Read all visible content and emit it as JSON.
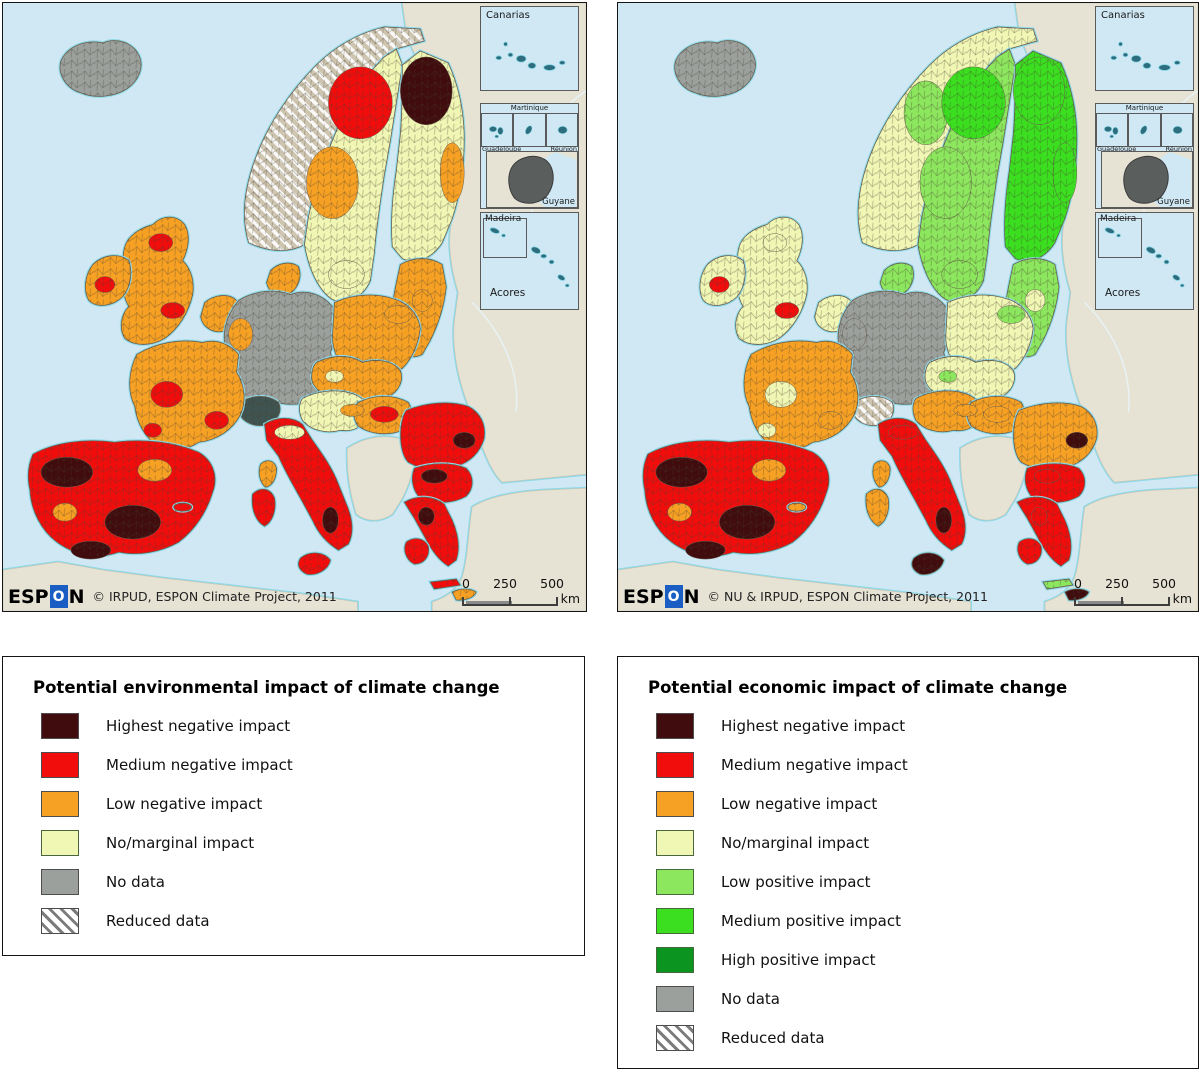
{
  "colors": {
    "sea": "#cfe8f4",
    "coast": "#8fd9e8",
    "land": "#e6e3d5",
    "land_border": "#c9c4b0",
    "region_border": "#6a6050",
    "hatch_base": "#cdc5b0",
    "highest_negative": "#400c0d",
    "medium_negative": "#f20d0d",
    "low_negative": "#f7a124",
    "no_marginal": "#f0f6b4",
    "low_positive": "#8ce65e",
    "medium_positive": "#3bdf20",
    "high_positive": "#0c9421",
    "no_data": "#9ba09d",
    "alpine_dark": "#3f5450"
  },
  "maps": [
    {
      "id": "environmental",
      "logo": {
        "prefix": "ESP",
        "o": "O",
        "suffix": "N"
      },
      "attribution": "© IRPUD, ESPON Climate Project, 2011",
      "scalebar": {
        "t0": "0",
        "t1": "250",
        "t2": "500",
        "unit": "km"
      },
      "insets": {
        "canarias": "Canarias",
        "martinique": "Martinique",
        "guadeloupe": "Guadeloupe",
        "reunion": "Réunion",
        "guyane": "Guyane",
        "madeira": "Madeira",
        "acores": "Acores"
      },
      "region_fills": {
        "iceland": "no_data",
        "norway": "reduced",
        "sweden": "no_marginal",
        "finland": "no_marginal",
        "denmark": "low_negative",
        "baltics": "low_negative",
        "uk": "low_negative",
        "ireland": "low_negative",
        "benelux": "low_negative",
        "germany": "no_data",
        "poland": "low_negative",
        "czech_slovakia": "low_negative",
        "austria": "no_marginal",
        "hungary": "low_negative",
        "switzerland": "alpine_dark",
        "france": "low_negative",
        "iberia": "medium_negative",
        "italy": "medium_negative",
        "sicily": "medium_negative",
        "sardinia": "medium_negative",
        "corsica": "low_negative",
        "romania": "medium_negative",
        "bulgaria": "medium_negative",
        "greece": "medium_negative",
        "peloponnese": "medium_negative",
        "crete": "medium_negative",
        "cyprus": "low_negative",
        "balearics": "medium_negative",
        "p_norway_n": "none",
        "p_sweden_north": "medium_negative",
        "p_finland_north": "highest_negative",
        "p_finland_east": "low_negative",
        "p_sweden_mid": "low_negative",
        "p_sweden_south": "no_marginal",
        "p_uk_scotland": "medium_negative",
        "p_uk_london": "medium_negative",
        "p_ireland": "medium_negative",
        "p_germany_west": "low_negative",
        "p_poland_ne": "low_negative",
        "p_czech": "no_marginal",
        "p_france1": "medium_negative",
        "p_france2": "medium_negative",
        "p_france3": "medium_negative",
        "p_iberia_d1": "highest_negative",
        "p_iberia_d2": "highest_negative",
        "p_iberia_d3": "highest_negative",
        "p_iberia_o1": "low_negative",
        "p_iberia_o2": "low_negative",
        "p_italy_north": "no_marginal",
        "p_italy_dark": "highest_negative",
        "p_hungary": "medium_negative",
        "p_romania_dark": "highest_negative",
        "p_balkan_dark": "highest_negative",
        "p_greece_dark": "highest_negative",
        "p_austria_o": "low_negative",
        "p_baltics_pale": "low_negative"
      }
    },
    {
      "id": "economic",
      "logo": {
        "prefix": "ESP",
        "o": "O",
        "suffix": "N"
      },
      "attribution": "© NU & IRPUD, ESPON Climate Project, 2011",
      "scalebar": {
        "t0": "0",
        "t1": "250",
        "t2": "500",
        "unit": "km"
      },
      "insets": {
        "canarias": "Canarias",
        "martinique": "Martinique",
        "guadeloupe": "Guadeloupe",
        "reunion": "Réunion",
        "guyane": "Guyane",
        "madeira": "Madeira",
        "acores": "Acores"
      },
      "region_fills": {
        "iceland": "no_data",
        "norway": "no_marginal",
        "sweden": "low_positive",
        "finland": "medium_positive",
        "denmark": "low_positive",
        "baltics": "low_positive",
        "uk": "no_marginal",
        "ireland": "no_marginal",
        "benelux": "no_marginal",
        "germany": "no_data",
        "poland": "no_marginal",
        "czech_slovakia": "no_marginal",
        "austria": "low_negative",
        "hungary": "low_negative",
        "switzerland": "reduced",
        "france": "low_negative",
        "iberia": "medium_negative",
        "italy": "medium_negative",
        "sicily": "highest_negative",
        "sardinia": "low_negative",
        "corsica": "low_negative",
        "romania": "low_negative",
        "bulgaria": "medium_negative",
        "greece": "medium_negative",
        "peloponnese": "medium_negative",
        "crete": "low_positive",
        "cyprus": "highest_negative",
        "balearics": "low_negative",
        "p_norway_n": "low_positive",
        "p_sweden_north": "medium_positive",
        "p_finland_north": "medium_positive",
        "p_finland_east": "medium_positive",
        "p_sweden_mid": "low_positive",
        "p_sweden_south": "low_positive",
        "p_uk_scotland": "no_marginal",
        "p_uk_london": "medium_negative",
        "p_ireland": "medium_negative",
        "p_germany_west": "no_data",
        "p_poland_ne": "low_positive",
        "p_czech": "low_positive",
        "p_france1": "no_marginal",
        "p_france2": "low_negative",
        "p_france3": "no_marginal",
        "p_iberia_d1": "highest_negative",
        "p_iberia_d2": "highest_negative",
        "p_iberia_d3": "highest_negative",
        "p_iberia_o1": "low_negative",
        "p_iberia_o2": "low_negative",
        "p_italy_north": "medium_negative",
        "p_italy_dark": "highest_negative",
        "p_hungary": "low_negative",
        "p_romania_dark": "highest_negative",
        "p_balkan_dark": "medium_negative",
        "p_greece_dark": "medium_negative",
        "p_austria_o": "low_negative",
        "p_baltics_pale": "no_marginal"
      }
    }
  ],
  "legends": [
    {
      "title": "Potential environmental impact of climate change",
      "items": [
        {
          "label": "Highest negative impact",
          "color": "#400c0d",
          "border": "#4d4d4d"
        },
        {
          "label": "Medium negative impact",
          "color": "#f20d0d",
          "border": "#4d4d4d"
        },
        {
          "label": "Low negative impact",
          "color": "#f7a124",
          "border": "#4d4d4d"
        },
        {
          "label": "No/marginal impact",
          "color": "#f0f6b4",
          "border": "#49663c"
        },
        {
          "label": "No data",
          "color": "#9ba09d",
          "border": "#4d4d4d"
        },
        {
          "label": "Reduced data",
          "hatched": true,
          "border": "#4d4d4d"
        }
      ]
    },
    {
      "title": "Potential economic impact of climate change",
      "items": [
        {
          "label": "Highest negative impact",
          "color": "#400c0d",
          "border": "#4d4d4d"
        },
        {
          "label": "Medium negative impact",
          "color": "#f20d0d",
          "border": "#4d4d4d"
        },
        {
          "label": "Low negative impact",
          "color": "#f7a124",
          "border": "#4d4d4d"
        },
        {
          "label": "No/marginal impact",
          "color": "#f0f6b4",
          "border": "#49663c"
        },
        {
          "label": "Low positive impact",
          "color": "#8ce65e",
          "border": "#456b3a"
        },
        {
          "label": "Medium positive impact",
          "color": "#3bdf20",
          "border": "#456b3a"
        },
        {
          "label": "High positive impact",
          "color": "#0c9421",
          "border": "#456b3a"
        },
        {
          "label": "No data",
          "color": "#9ba09d",
          "border": "#4d4d4d"
        },
        {
          "label": "Reduced data",
          "hatched": true,
          "border": "#4d4d4d"
        }
      ]
    }
  ]
}
